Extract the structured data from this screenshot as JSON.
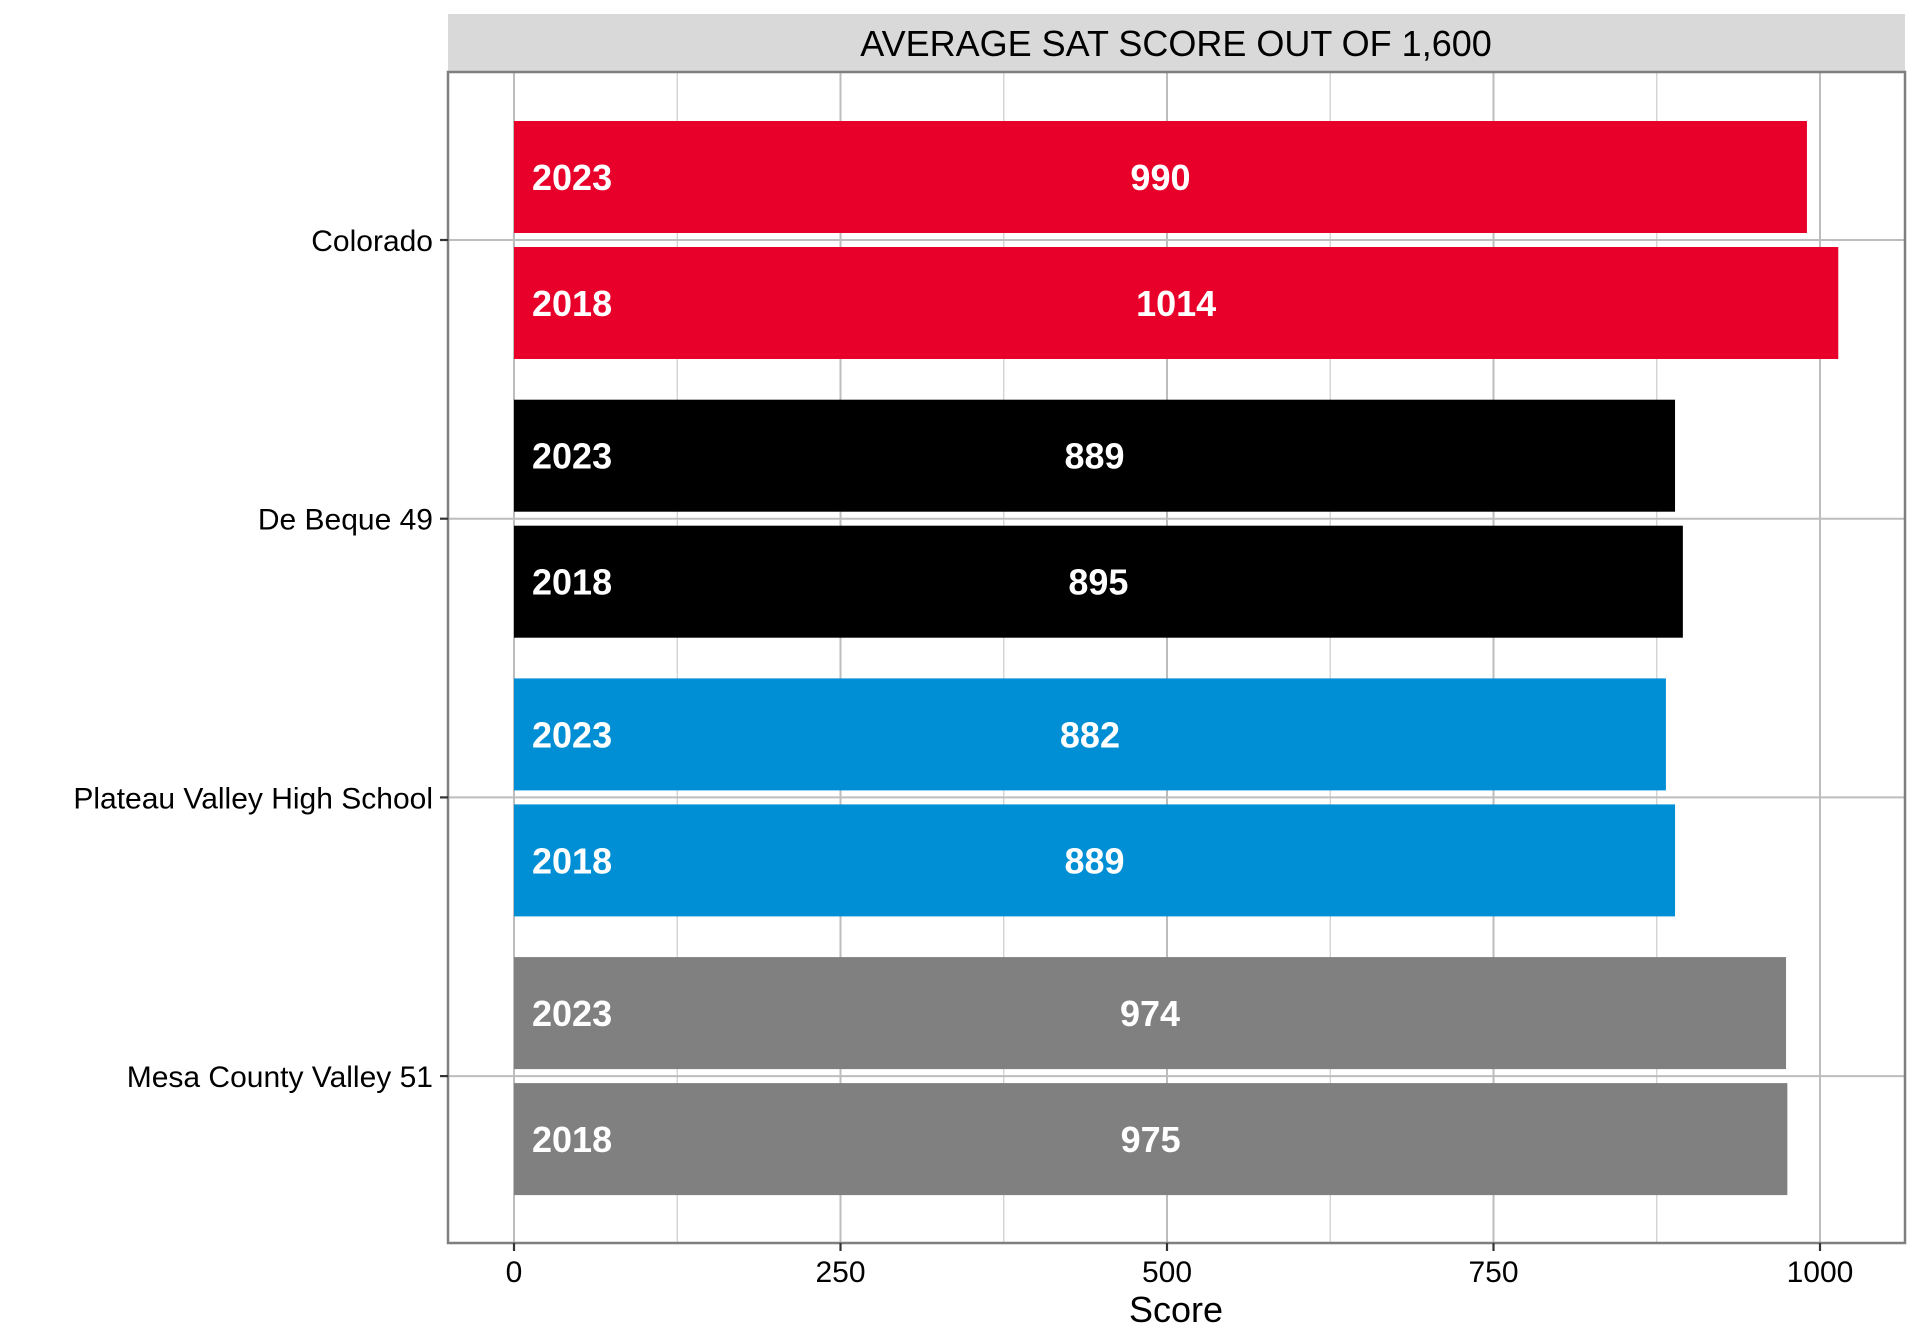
{
  "chart_data": {
    "type": "bar",
    "orientation": "horizontal",
    "title": "AVERAGE SAT SCORE OUT OF 1,600",
    "xlabel": "Score",
    "ylabel": "",
    "xlim": [
      -50,
      1065
    ],
    "x_ticks": [
      0,
      250,
      500,
      750,
      1000
    ],
    "x_tick_labels": [
      "0",
      "250",
      "500",
      "750",
      "1000"
    ],
    "grid": true,
    "legend": "none",
    "categories": [
      "Colorado",
      "De Beque 49",
      "Plateau Valley High School",
      "Mesa County Valley 51"
    ],
    "series": [
      {
        "name": "2023",
        "values": [
          990,
          889,
          882,
          974
        ]
      },
      {
        "name": "2018",
        "values": [
          1014,
          895,
          889,
          975
        ]
      }
    ],
    "category_colors": [
      "#E8002A",
      "#000000",
      "#008FD5",
      "#808080"
    ],
    "data_labels": [
      [
        "990",
        "889",
        "882",
        "974"
      ],
      [
        "1014",
        "895",
        "889",
        "975"
      ]
    ]
  }
}
